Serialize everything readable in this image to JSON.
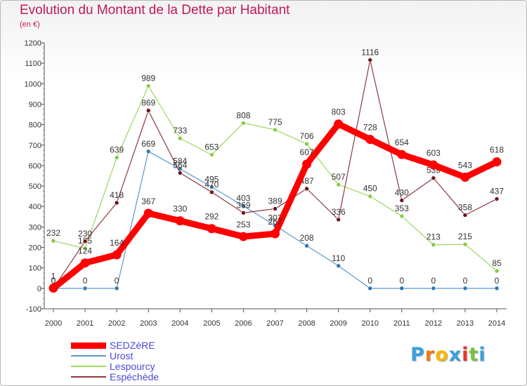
{
  "chart_data": {
    "type": "line",
    "title": "Evolution du Montant de la Dette par Habitant",
    "subtitle": "(en €)",
    "x": [
      "2000",
      "2001",
      "2002",
      "2003",
      "2004",
      "2005",
      "2006",
      "2007",
      "2008",
      "2009",
      "2010",
      "2011",
      "2012",
      "2013",
      "2014"
    ],
    "ylim": [
      -100,
      1200
    ],
    "yticks": [
      -100,
      0,
      100,
      200,
      300,
      400,
      500,
      600,
      700,
      800,
      900,
      1000,
      1100,
      1200
    ],
    "grid": false,
    "legend_position": "bottom-left",
    "series": [
      {
        "name": "Urost",
        "color": "#5a96c8",
        "marker": "#2a78b8",
        "values": [
          0,
          0,
          0,
          669,
          584,
          495,
          403,
          307,
          208,
          110,
          0,
          0,
          0,
          0,
          0
        ]
      },
      {
        "name": "Lespourcy",
        "color": "#9ad860",
        "marker": "#86cc44",
        "values": [
          232,
          195,
          639,
          989,
          733,
          653,
          808,
          775,
          706,
          507,
          450,
          353,
          213,
          215,
          85
        ]
      },
      {
        "name": "Espéchède",
        "color": "#8b3a44",
        "marker": "#6e1420",
        "values": [
          0,
          230,
          418,
          869,
          564,
          470,
          369,
          389,
          487,
          336,
          1116,
          430,
          539,
          358,
          437
        ]
      },
      {
        "name": "SEDZèRE",
        "color": "#ff0000",
        "marker": "#ff0000",
        "bold": true,
        "values": [
          1,
          124,
          164,
          367,
          330,
          292,
          253,
          267,
          607,
          803,
          728,
          654,
          603,
          543,
          618
        ]
      }
    ]
  },
  "legend": {
    "items": [
      {
        "label": "SEDZèRE",
        "color": "#ff0000"
      },
      {
        "label": "Urost",
        "color": "#5a96c8"
      },
      {
        "label": "Lespourcy",
        "color": "#9ad860"
      },
      {
        "label": "Espéchède",
        "color": "#8b3a44"
      }
    ]
  },
  "logo": {
    "letters": [
      "P",
      "r",
      "o",
      "x",
      "i",
      "t",
      "i"
    ],
    "colors": [
      "#3aa0e0",
      "#f07a1a",
      "#f5b800",
      "#3aa0e0",
      "#e8332a",
      "#7ac143",
      "#3aa0e0"
    ]
  }
}
